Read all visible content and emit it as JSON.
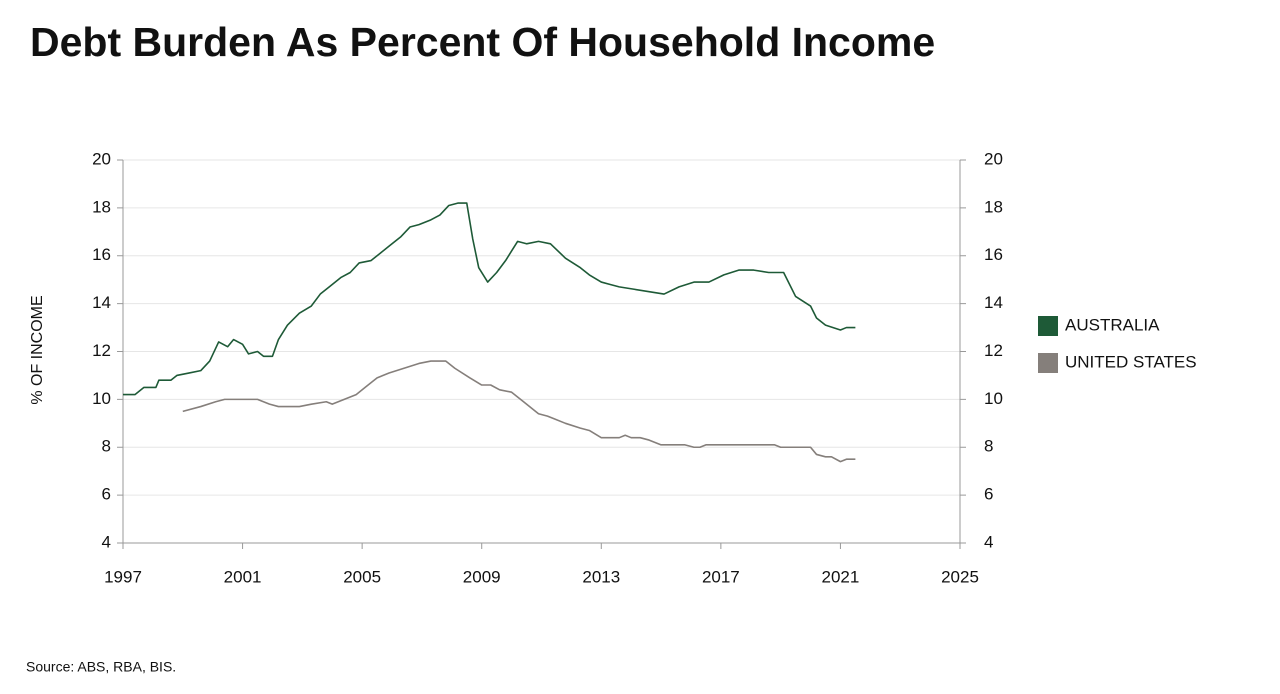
{
  "chart_data": {
    "type": "line",
    "title": "Debt Burden As Percent Of Household Income",
    "ylabel": "% OF INCOME",
    "source": "Source: ABS, RBA, BIS.",
    "xlim": [
      1997,
      2025
    ],
    "xticks": [
      1997,
      2001,
      2005,
      2009,
      2013,
      2017,
      2021,
      2025
    ],
    "ylim": [
      4,
      20
    ],
    "yticks": [
      4,
      6,
      8,
      10,
      12,
      14,
      16,
      18,
      20
    ],
    "y2lim": [
      4,
      20
    ],
    "y2ticks": [
      4,
      6,
      8,
      10,
      12,
      14,
      16,
      18,
      20
    ],
    "grid": true,
    "legend": "right",
    "series": [
      {
        "name": "AUSTRALIA",
        "color": "#1e5a37",
        "x": [
          1997.0,
          1997.4,
          1997.7,
          1998.1,
          1998.2,
          1998.6,
          1998.8,
          1999.2,
          1999.6,
          1999.9,
          2000.2,
          2000.5,
          2000.7,
          2001.0,
          2001.2,
          2001.5,
          2001.7,
          2002.0,
          2002.2,
          2002.5,
          2002.9,
          2003.3,
          2003.6,
          2003.9,
          2004.3,
          2004.6,
          2004.9,
          2005.3,
          2005.6,
          2005.9,
          2006.3,
          2006.6,
          2006.9,
          2007.3,
          2007.6,
          2007.9,
          2008.2,
          2008.5,
          2008.7,
          2008.9,
          2009.2,
          2009.5,
          2009.8,
          2010.0,
          2010.2,
          2010.5,
          2010.9,
          2011.3,
          2011.8,
          2012.3,
          2012.6,
          2013.0,
          2013.3,
          2013.6,
          2014.1,
          2014.6,
          2015.1,
          2015.6,
          2016.1,
          2016.6,
          2017.1,
          2017.6,
          2018.1,
          2018.6,
          2019.1,
          2019.5,
          2020.0,
          2020.2,
          2020.5,
          2021.0,
          2021.2,
          2021.5
        ],
        "values": [
          10.2,
          10.2,
          10.5,
          10.5,
          10.8,
          10.8,
          11.0,
          11.1,
          11.2,
          11.6,
          12.4,
          12.2,
          12.5,
          12.3,
          11.9,
          12.0,
          11.8,
          11.8,
          12.5,
          13.1,
          13.6,
          13.9,
          14.4,
          14.7,
          15.1,
          15.3,
          15.7,
          15.8,
          16.1,
          16.4,
          16.8,
          17.2,
          17.3,
          17.5,
          17.7,
          18.1,
          18.2,
          18.2,
          16.7,
          15.5,
          14.9,
          15.3,
          15.8,
          16.2,
          16.6,
          16.5,
          16.6,
          16.5,
          15.9,
          15.5,
          15.2,
          14.9,
          14.8,
          14.7,
          14.6,
          14.5,
          14.4,
          14.7,
          14.9,
          14.9,
          15.2,
          15.4,
          15.4,
          15.3,
          15.3,
          14.3,
          13.9,
          13.4,
          13.1,
          12.9,
          13.0,
          13.0
        ]
      },
      {
        "name": "UNITED STATES",
        "color": "#857f7b",
        "x": [
          1999.0,
          1999.6,
          2000.1,
          2000.4,
          2000.6,
          2001.5,
          2001.9,
          2002.2,
          2002.9,
          2003.3,
          2003.8,
          2004.0,
          2004.4,
          2004.8,
          2005.1,
          2005.5,
          2005.9,
          2006.4,
          2006.9,
          2007.3,
          2007.8,
          2008.1,
          2008.6,
          2009.0,
          2009.3,
          2009.6,
          2010.0,
          2010.4,
          2010.9,
          2011.2,
          2011.4,
          2011.8,
          2012.3,
          2012.6,
          2013.0,
          2013.3,
          2013.6,
          2013.8,
          2014.0,
          2014.3,
          2014.6,
          2015.0,
          2015.8,
          2016.1,
          2016.3,
          2016.5,
          2018.8,
          2019.0,
          2020.0,
          2020.2,
          2020.5,
          2020.7,
          2021.0,
          2021.2,
          2021.5
        ],
        "values": [
          9.5,
          9.7,
          9.9,
          10.0,
          10.0,
          10.0,
          9.8,
          9.7,
          9.7,
          9.8,
          9.9,
          9.8,
          10.0,
          10.2,
          10.5,
          10.9,
          11.1,
          11.3,
          11.5,
          11.6,
          11.6,
          11.3,
          10.9,
          10.6,
          10.6,
          10.4,
          10.3,
          9.9,
          9.4,
          9.3,
          9.2,
          9.0,
          8.8,
          8.7,
          8.4,
          8.4,
          8.4,
          8.5,
          8.4,
          8.4,
          8.3,
          8.1,
          8.1,
          8.0,
          8.0,
          8.1,
          8.1,
          8.0,
          8.0,
          7.7,
          7.6,
          7.6,
          7.4,
          7.5,
          7.5
        ]
      }
    ]
  }
}
